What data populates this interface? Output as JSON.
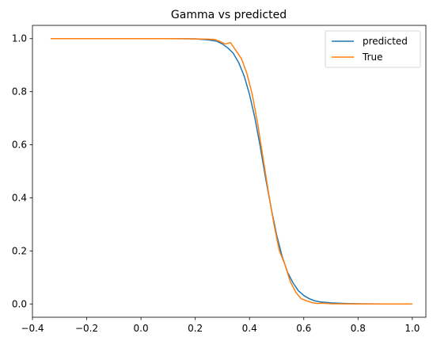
{
  "chart_data": {
    "type": "line",
    "title": "Gamma vs predicted",
    "xlabel": "",
    "ylabel": "",
    "xlim": [
      -0.4,
      1.05
    ],
    "ylim": [
      -0.05,
      1.05
    ],
    "xticks": [
      -0.4,
      -0.2,
      0.0,
      0.2,
      0.4,
      0.6,
      0.8,
      1.0
    ],
    "xtick_labels": [
      "−0.4",
      "−0.2",
      "0.0",
      "0.2",
      "0.4",
      "0.6",
      "0.8",
      "1.0"
    ],
    "yticks": [
      0.0,
      0.2,
      0.4,
      0.6,
      0.8,
      1.0
    ],
    "ytick_labels": [
      "0.0",
      "0.2",
      "0.4",
      "0.6",
      "0.8",
      "1.0"
    ],
    "grid": false,
    "legend_position": "top-right",
    "series": [
      {
        "name": "predicted",
        "color": "#1f77b4",
        "x": [
          -0.333,
          -0.2,
          -0.1,
          0.0,
          0.1,
          0.15,
          0.2,
          0.25,
          0.28,
          0.3,
          0.32,
          0.34,
          0.36,
          0.38,
          0.4,
          0.42,
          0.44,
          0.46,
          0.48,
          0.5,
          0.52,
          0.54,
          0.56,
          0.58,
          0.6,
          0.62,
          0.64,
          0.66,
          0.7,
          0.75,
          0.8,
          0.9,
          1.0
        ],
        "y": [
          1.0,
          1.0,
          1.0,
          1.0,
          1.0,
          1.0,
          0.999,
          0.995,
          0.99,
          0.98,
          0.965,
          0.945,
          0.91,
          0.86,
          0.79,
          0.7,
          0.59,
          0.47,
          0.36,
          0.26,
          0.18,
          0.12,
          0.08,
          0.05,
          0.032,
          0.02,
          0.012,
          0.008,
          0.004,
          0.002,
          0.001,
          0.0,
          0.0
        ]
      },
      {
        "name": "True",
        "color": "#ff7f0e",
        "x": [
          -0.333,
          -0.2,
          -0.1,
          0.0,
          0.1,
          0.2,
          0.25,
          0.27,
          0.29,
          0.31,
          0.33,
          0.35,
          0.37,
          0.39,
          0.41,
          0.43,
          0.45,
          0.47,
          0.49,
          0.51,
          0.53,
          0.55,
          0.57,
          0.59,
          0.61,
          0.63,
          0.65,
          0.67,
          0.7,
          0.8,
          0.9,
          1.0
        ],
        "y": [
          1.0,
          1.0,
          1.0,
          1.0,
          1.0,
          0.999,
          0.998,
          0.997,
          0.99,
          0.98,
          0.985,
          0.955,
          0.925,
          0.87,
          0.79,
          0.68,
          0.55,
          0.42,
          0.3,
          0.2,
          0.15,
          0.085,
          0.045,
          0.02,
          0.012,
          0.005,
          0.002,
          0.003,
          0.001,
          0.0,
          0.0,
          0.0
        ]
      }
    ]
  }
}
